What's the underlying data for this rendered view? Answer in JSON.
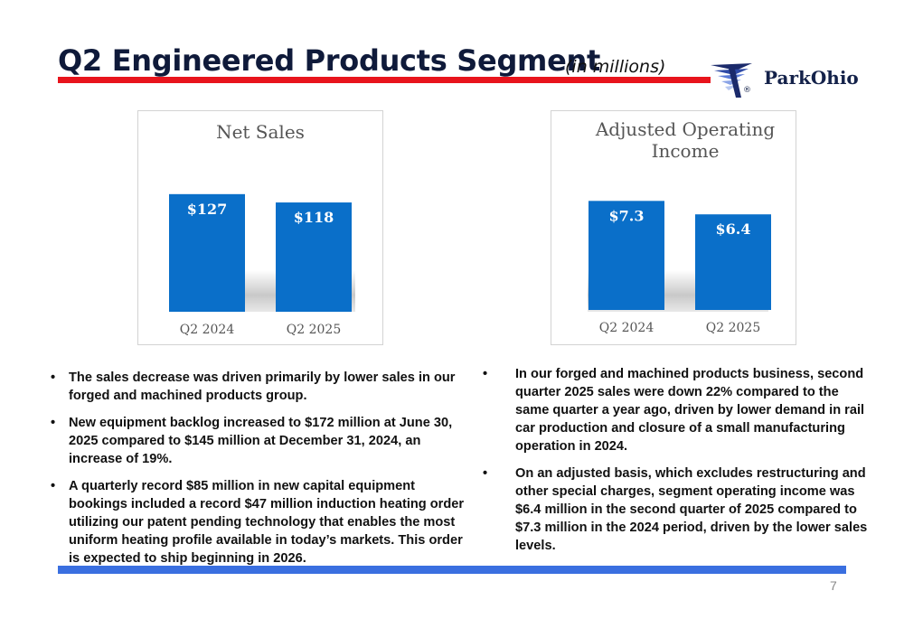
{
  "header": {
    "title": "Q2 Engineered Products Segment",
    "subtitle": "(in millions)",
    "logo_text": "ParkOhio",
    "logo_mark": "®"
  },
  "colors": {
    "title_rule": "#e8141c",
    "bar": "#0a6fc9",
    "bottom_rule": "#3a6fe0",
    "logo_blue": "#14224a"
  },
  "chart_data": [
    {
      "type": "bar",
      "title": "Net Sales",
      "categories": [
        "Q2 2024",
        "Q2 2025"
      ],
      "values": [
        127,
        118
      ],
      "value_labels": [
        "$127",
        "$118"
      ],
      "ylim": [
        0,
        160
      ],
      "grid": false
    },
    {
      "type": "bar",
      "title": "Adjusted Operating Income",
      "title_lines": [
        "Adjusted Operating",
        "Income"
      ],
      "categories": [
        "Q2 2024",
        "Q2 2025"
      ],
      "values": [
        7.3,
        6.4
      ],
      "value_labels": [
        "$7.3",
        "$6.4"
      ],
      "ylim": [
        0,
        9.8
      ],
      "grid": false
    }
  ],
  "bullets_left": [
    "The sales decrease was driven primarily  by lower sales in our forged and machined products group.",
    "New equipment backlog increased to $172 million at June 30, 2025 compared to $145 million at December 31, 2024, an increase of 19%.",
    "A quarterly record $85 million in new capital equipment bookings included a record $47 million induction heating order utilizing our patent pending technology that enables the most uniform heating profile available in today’s markets. This order is expected to ship beginning in 2026."
  ],
  "bullets_right": [
    "In our forged and machined products business, second quarter 2025 sales were down 22% compared to the same quarter a year ago, driven by lower demand in rail car production and closure of a small manufacturing operation in 2024.",
    "On an adjusted basis, which excludes restructuring and other special charges, segment operating income was $6.4 million in the second quarter of 2025 compared to $7.3 million in the 2024 period, driven by the lower sales levels."
  ],
  "bullet_glyph": "•",
  "footer": {
    "page_number": "7"
  }
}
